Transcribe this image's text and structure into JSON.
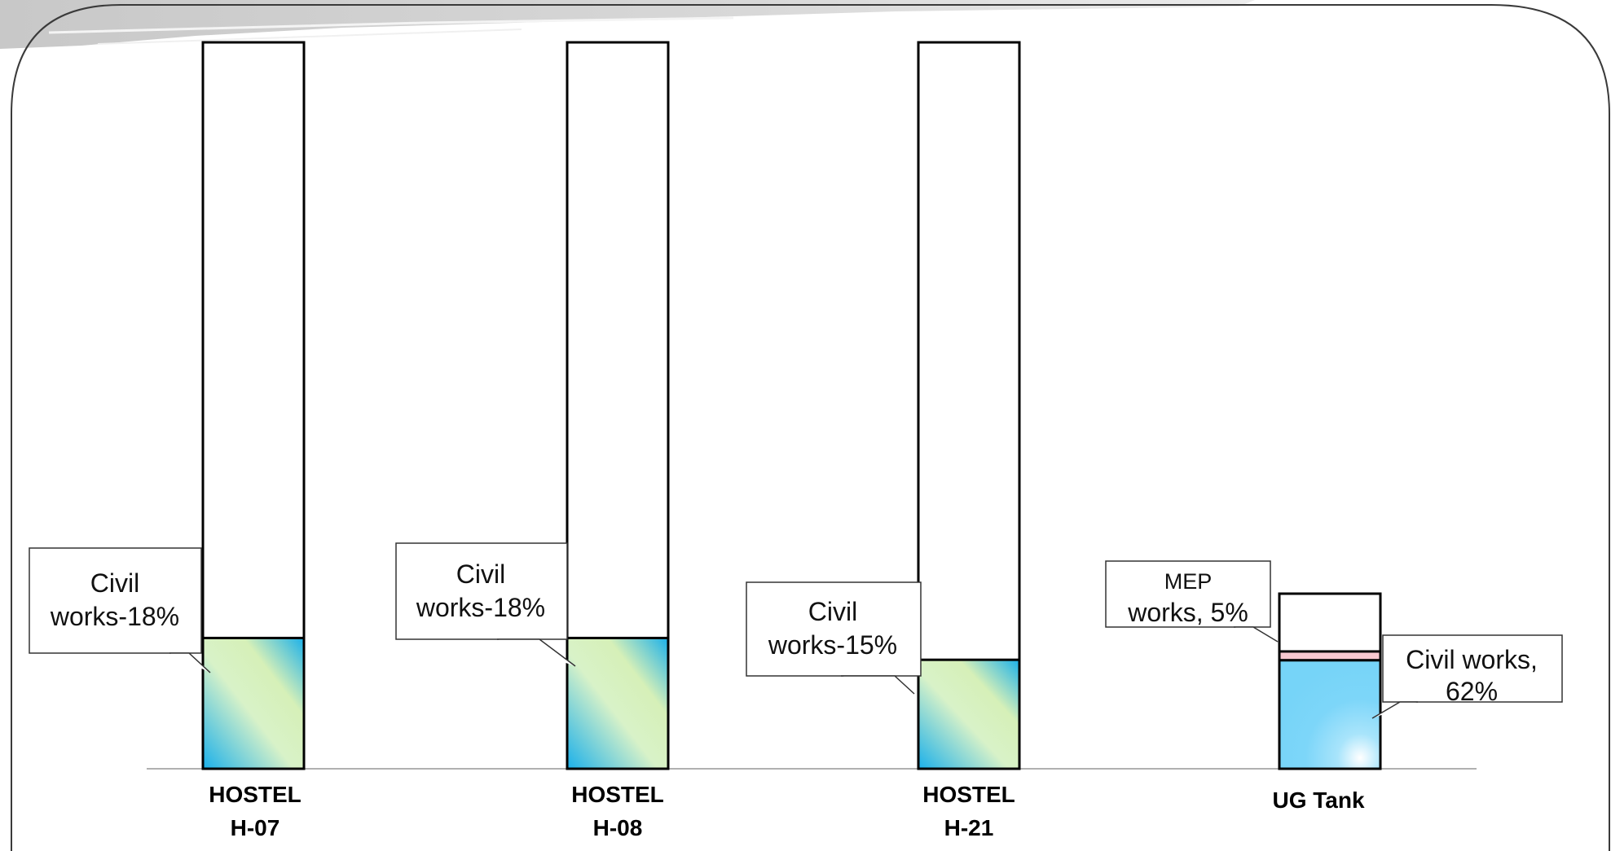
{
  "chart_data": {
    "type": "bar",
    "categories": [
      {
        "line1": "HOSTEL",
        "line2": "H-07"
      },
      {
        "line1": "HOSTEL",
        "line2": "H-08"
      },
      {
        "line1": "HOSTEL",
        "line2": "H-21"
      },
      {
        "line1": "UG Tank",
        "line2": ""
      }
    ],
    "bars": [
      {
        "segments": [
          {
            "name": "Civil works",
            "value": 18,
            "fill": "gradient-civil"
          }
        ],
        "callouts": [
          {
            "lines": [
              "Civil",
              "works-18%"
            ],
            "side": "left"
          }
        ]
      },
      {
        "segments": [
          {
            "name": "Civil works",
            "value": 18,
            "fill": "gradient-civil"
          }
        ],
        "callouts": [
          {
            "lines": [
              "Civil",
              "works-18%"
            ],
            "side": "left"
          }
        ]
      },
      {
        "segments": [
          {
            "name": "Civil works",
            "value": 15,
            "fill": "gradient-civil"
          }
        ],
        "callouts": [
          {
            "lines": [
              "Civil",
              "works-15%"
            ],
            "side": "left"
          }
        ]
      },
      {
        "segments": [
          {
            "name": "Civil works",
            "value": 62,
            "fill": "gradient-tank"
          },
          {
            "name": "MEP works",
            "value": 5,
            "fill": "#f8c8d0"
          }
        ],
        "callouts": [
          {
            "lines": [
              "MEP",
              "works, 5%"
            ],
            "side": "left"
          },
          {
            "lines": [
              "Civil works,",
              "62%"
            ],
            "side": "right"
          }
        ]
      }
    ],
    "colors": {
      "civil_gradient": [
        "#1ab0ea",
        "#d8f2c8",
        "#d6f0b8"
      ],
      "tank_gradient": [
        "#6fd2f8",
        "#ffffff"
      ],
      "mep": "#f8c8d0",
      "outline": "#000000",
      "baseline": "#b0b0b0"
    },
    "legend": "none",
    "grid": false
  }
}
